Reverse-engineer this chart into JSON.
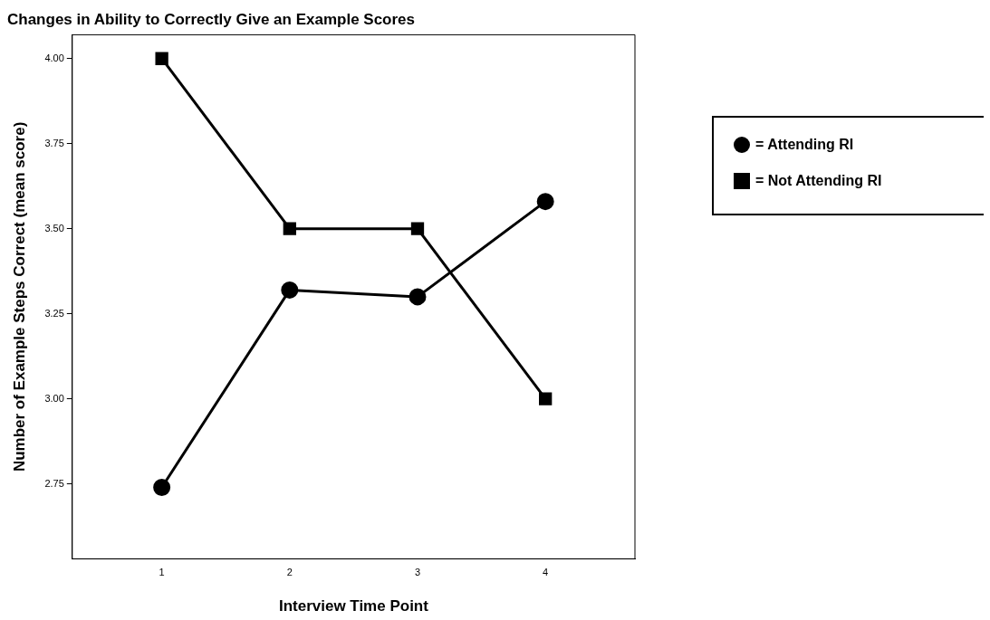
{
  "chart_data": {
    "type": "line",
    "title": "Changes in Ability to Correctly Give an Example Scores",
    "xlabel": "Interview Time Point",
    "ylabel": "Number of Example Steps Correct (mean score)",
    "x": [
      1,
      2,
      3,
      4
    ],
    "xlim": [
      0.3,
      4.7
    ],
    "xticks": [
      1,
      2,
      3,
      4
    ],
    "ylim": [
      2.53,
      4.07
    ],
    "yticks": [
      {
        "value": 2.75,
        "label": "2.75"
      },
      {
        "value": 3,
        "label": "3.00"
      },
      {
        "value": 3.25,
        "label": "3.25"
      },
      {
        "value": 3.5,
        "label": "3.50"
      },
      {
        "value": 3.75,
        "label": "3.75"
      },
      {
        "value": 4,
        "label": "4.00"
      }
    ],
    "grid": false,
    "legend": "right",
    "line_style": "solid",
    "series": [
      {
        "name": "= Attending RI",
        "color": "#000000",
        "marker": "circle",
        "values": [
          2.74,
          3.32,
          3.3,
          3.58
        ]
      },
      {
        "name": "= Not Attending RI",
        "color": "#000000",
        "marker": "square",
        "values": [
          4.0,
          3.5,
          3.5,
          3.0
        ]
      }
    ]
  }
}
